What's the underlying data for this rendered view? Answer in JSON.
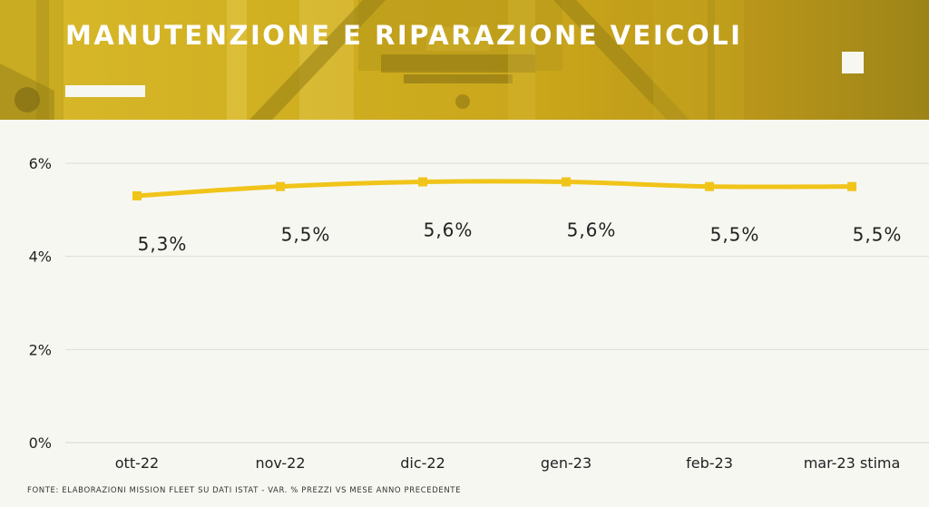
{
  "header": {
    "title": "MANUTENZIONE E RIPARAZIONE VEICOLI"
  },
  "chart_data": {
    "type": "line",
    "title": "MANUTENZIONE E RIPARAZIONE VEICOLI",
    "categories": [
      "ott-22",
      "nov-22",
      "dic-22",
      "gen-23",
      "feb-23",
      "mar-23 stima"
    ],
    "values": [
      5.3,
      5.5,
      5.6,
      5.6,
      5.5,
      5.5
    ],
    "data_labels": [
      "5,3%",
      "5,5%",
      "5,6%",
      "5,6%",
      "5,5%",
      "5,5%"
    ],
    "y_ticks": [
      {
        "value": 0,
        "label": "0%"
      },
      {
        "value": 2,
        "label": "2%"
      },
      {
        "value": 4,
        "label": "4%"
      },
      {
        "value": 6,
        "label": "6%"
      }
    ],
    "ylim": [
      0,
      6
    ],
    "grid": true,
    "legend": "none",
    "xlabel": "",
    "ylabel": "",
    "line_color": "#f0c419"
  },
  "footer": {
    "source": "FONTE: ELABORAZIONI MISSION FLEET SU DATI ISTAT - VAR. % PREZZI VS MESE ANNO PRECEDENTE"
  },
  "colors": {
    "header_yellow": "#d4b426",
    "background": "#f7f7f2",
    "line": "#f0c419",
    "grid": "#dcdcd8"
  }
}
